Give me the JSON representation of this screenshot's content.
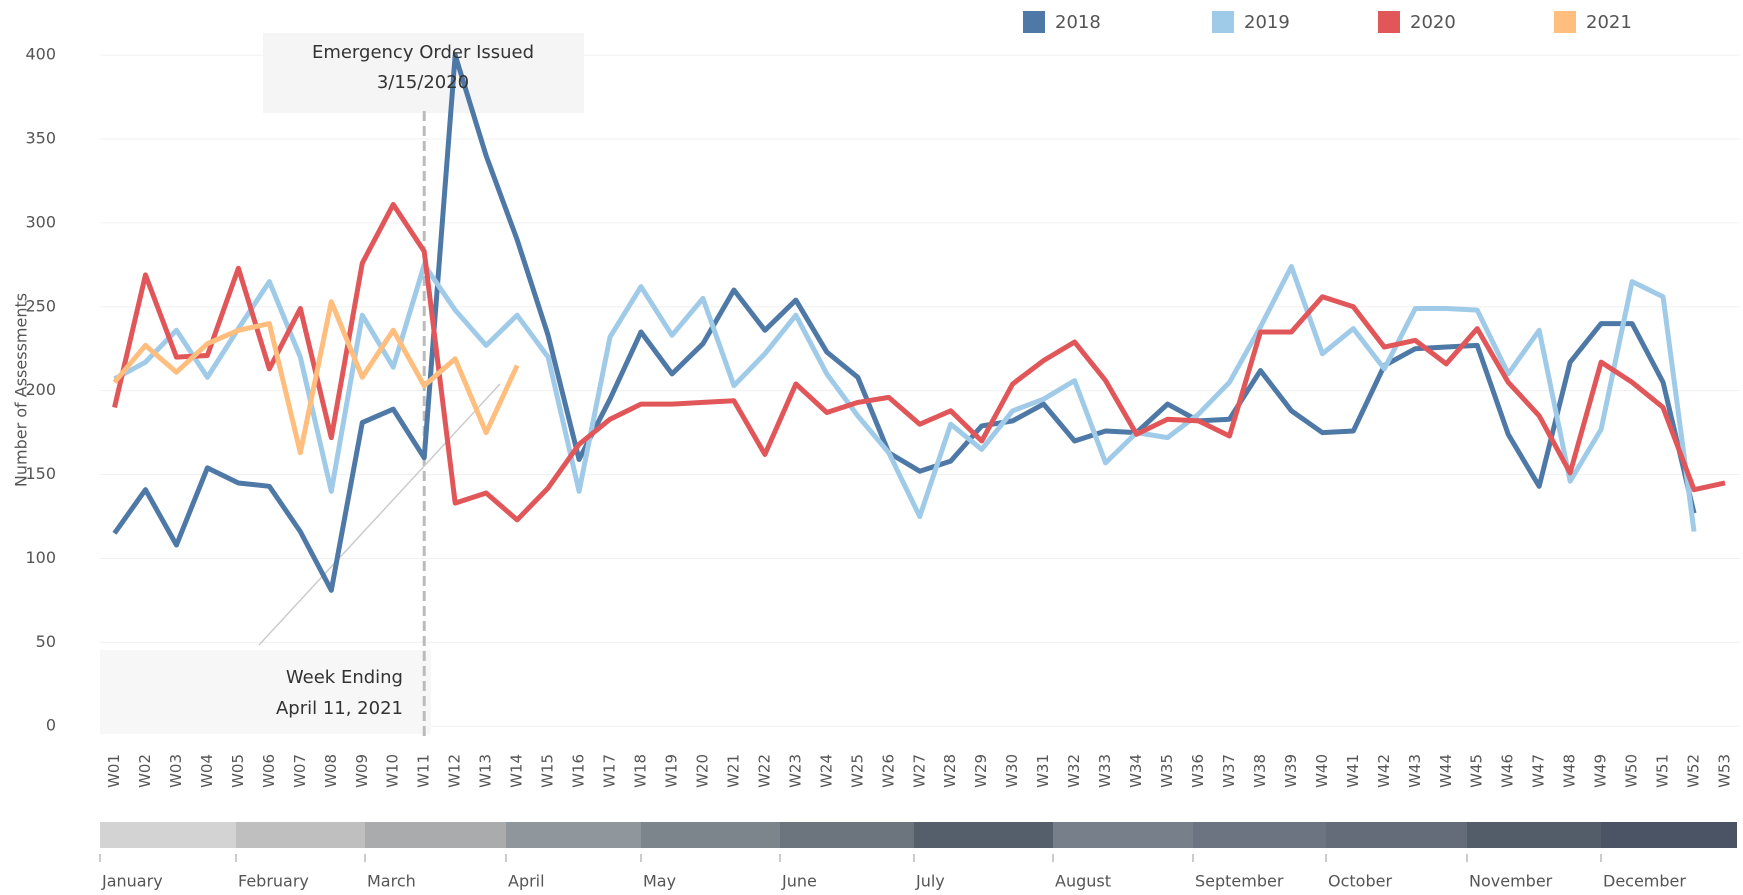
{
  "chart_data": {
    "type": "line",
    "y_label": "Number of Assessments",
    "categories": [
      "W01",
      "W02",
      "W03",
      "W04",
      "W05",
      "W06",
      "W07",
      "W08",
      "W09",
      "W10",
      "W11",
      "W12",
      "W13",
      "W14",
      "W15",
      "W16",
      "W17",
      "W18",
      "W19",
      "W20",
      "W21",
      "W22",
      "W23",
      "W24",
      "W25",
      "W26",
      "W27",
      "W28",
      "W29",
      "W30",
      "W31",
      "W32",
      "W33",
      "W34",
      "W35",
      "W36",
      "W37",
      "W38",
      "W39",
      "W40",
      "W41",
      "W42",
      "W43",
      "W44",
      "W45",
      "W46",
      "W47",
      "W48",
      "W49",
      "W50",
      "W51",
      "W52",
      "W53"
    ],
    "series": [
      {
        "name": "2018",
        "color": "#4e79a7",
        "values": [
          115,
          141,
          108,
          154,
          145,
          143,
          116,
          81,
          181,
          189,
          160,
          400,
          340,
          290,
          233,
          159,
          195,
          235,
          210,
          228,
          260,
          236,
          254,
          223,
          208,
          163,
          152,
          158,
          179,
          182,
          192,
          170,
          176,
          175,
          192,
          182,
          183,
          212,
          188,
          175,
          176,
          215,
          225,
          226,
          227,
          174,
          143,
          217,
          240,
          240,
          205,
          127,
          null
        ]
      },
      {
        "name": "2019",
        "color": "#a0cbe8",
        "values": [
          207,
          217,
          236,
          208,
          237,
          265,
          220,
          140,
          245,
          214,
          275,
          248,
          227,
          245,
          220,
          140,
          232,
          262,
          233,
          255,
          203,
          222,
          245,
          210,
          185,
          163,
          125,
          180,
          165,
          188,
          195,
          206,
          157,
          175,
          172,
          186,
          205,
          238,
          274,
          222,
          237,
          213,
          249,
          249,
          248,
          210,
          236,
          146,
          177,
          265,
          256,
          116,
          null
        ]
      },
      {
        "name": "2020",
        "color": "#e15759",
        "values": [
          190,
          269,
          220,
          221,
          273,
          213,
          249,
          172,
          276,
          311,
          283,
          133,
          139,
          123,
          142,
          168,
          183,
          192,
          192,
          193,
          194,
          162,
          204,
          187,
          193,
          196,
          180,
          188,
          170,
          204,
          218,
          229,
          206,
          174,
          183,
          182,
          173,
          235,
          235,
          256,
          250,
          226,
          230,
          216,
          237,
          205,
          185,
          151,
          217,
          205,
          190,
          141,
          145
        ]
      },
      {
        "name": "2021",
        "color": "#ffbe7d",
        "values": [
          205,
          227,
          211,
          228,
          236,
          240,
          163,
          253,
          208,
          236,
          203,
          219,
          175,
          215,
          null,
          null,
          null,
          null,
          null,
          null,
          null,
          null,
          null,
          null,
          null,
          null,
          null,
          null,
          null,
          null,
          null,
          null,
          null,
          null,
          null,
          null,
          null,
          null,
          null,
          null,
          null,
          null,
          null,
          null,
          null,
          null,
          null,
          null,
          null,
          null,
          null,
          null,
          null
        ]
      }
    ],
    "ylim": [
      -10,
      412
    ],
    "yticks": [
      0,
      50,
      100,
      150,
      200,
      250,
      300,
      350,
      400
    ],
    "grid": true,
    "legend": "top-right",
    "annotations": [
      {
        "lines": [
          "Emergency Order Issued",
          "3/15/2020"
        ]
      },
      {
        "lines": [
          "Week Ending",
          "April 11, 2021"
        ]
      }
    ],
    "month_band": {
      "labels": [
        "January",
        "February",
        "March",
        "April",
        "May",
        "June",
        "July",
        "August",
        "September",
        "October",
        "November",
        "December"
      ],
      "colors": [
        "#d3d3d3",
        "#bfbfbf",
        "#a9abac",
        "#8f979c",
        "#7d858c",
        "#6c757d",
        "#555e6b",
        "#77808a",
        "#6b7480",
        "#636c78",
        "#535c69",
        "#4b5465"
      ]
    }
  }
}
